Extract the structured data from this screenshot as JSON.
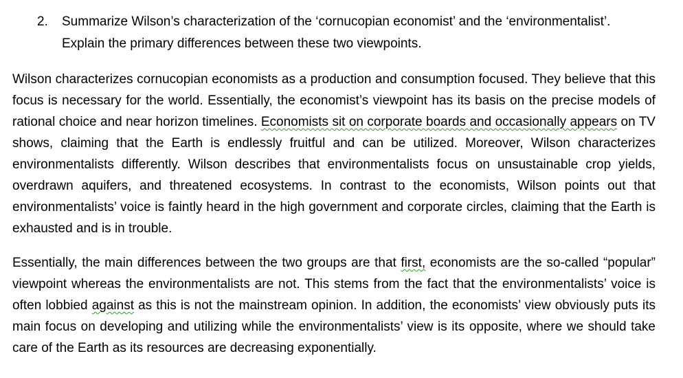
{
  "question": {
    "number": "2.",
    "text": "Summarize Wilson’s characterization of the ‘cornucopian economist’ and the ‘environmentalist’.\nExplain the primary differences between these two viewpoints."
  },
  "paragraph1": {
    "part1": "Wilson characterizes cornucopian economists as a production and consumption focused. They believe that this focus is necessary for the world. Essentially, the economist’s viewpoint has its basis on the precise models of rational choice and near horizon timelines. ",
    "flagged1": "Economists sit on corporate boards and occasionally appears",
    "part2": " on TV shows, claiming that the Earth is endlessly fruitful and can be utilized. Moreover, Wilson characterizes environmentalists differently. Wilson describes that environmentalists focus on unsustainable crop yields, overdrawn aquifers, and threatened ecosystems. In contrast to the economists, Wilson points out that environmentalists’ voice is faintly heard in the high government and corporate circles, claiming that the Earth is exhausted and is in trouble."
  },
  "paragraph2": {
    "part1": "Essentially, the main differences between the two groups are that ",
    "flagged1": "first,",
    "part2": " economists are the so-called “popular” viewpoint whereas the environmentalists are not. This stems from the fact that the environmentalists’ voice is often lobbied ",
    "flagged2": "against",
    "part3": " as this is not the mainstream opinion. In addition, the economists’ view obviously puts its main focus on developing and utilizing while the environmentalists’ view is its opposite, where we should take care of the Earth as its resources are decreasing exponentially."
  },
  "colors": {
    "text": "#000000",
    "grammar_squiggle": "#2e9b2e",
    "background": "#ffffff"
  }
}
